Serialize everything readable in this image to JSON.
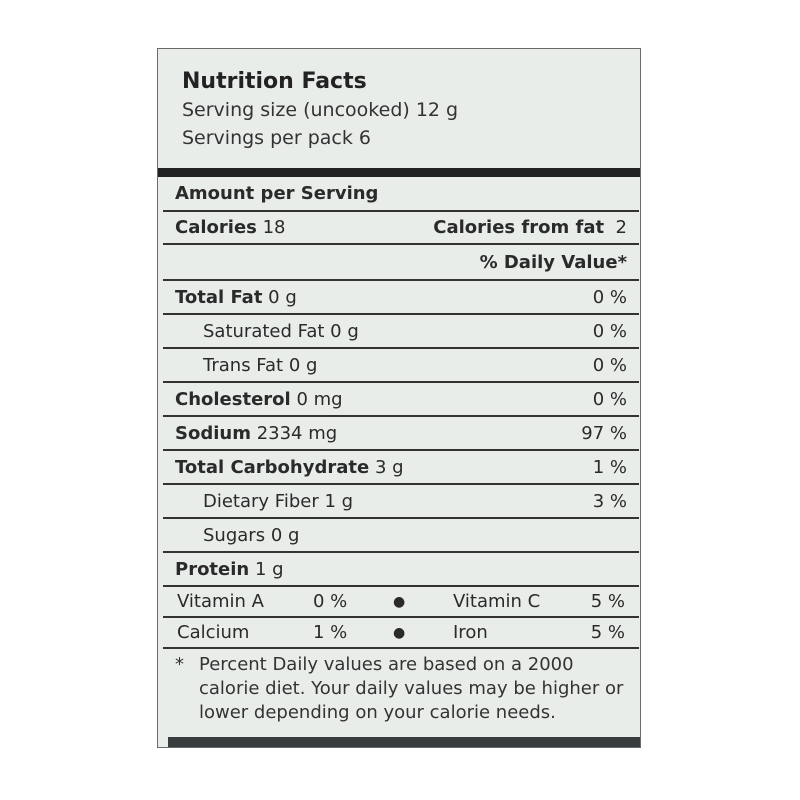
{
  "header": {
    "title": "Nutrition Facts",
    "serving_size": "Serving size (uncooked) 12 g",
    "servings_per_pack": "Servings per pack 6"
  },
  "amount_per_serving": "Amount per Serving",
  "calories": {
    "label": "Calories",
    "value": "18",
    "from_fat_label": "Calories from fat",
    "from_fat_value": "2"
  },
  "daily_value_header": "% Daily Value*",
  "nutrients": [
    {
      "label": "Total Fat",
      "amount": "0 g",
      "dv": "0 %",
      "bold": true,
      "indent": false
    },
    {
      "label": "Saturated Fat",
      "amount": "0 g",
      "dv": "0 %",
      "bold": false,
      "indent": true
    },
    {
      "label": "Trans Fat",
      "amount": "0 g",
      "dv": "0 %",
      "bold": false,
      "indent": true
    },
    {
      "label": "Cholesterol",
      "amount": "0 mg",
      "dv": "0 %",
      "bold": true,
      "indent": false
    },
    {
      "label": "Sodium",
      "amount": "2334 mg",
      "dv": "97 %",
      "bold": true,
      "indent": false
    },
    {
      "label": "Total Carbohydrate",
      "amount": "3 g",
      "dv": "1 %",
      "bold": true,
      "indent": false
    },
    {
      "label": "Dietary Fiber",
      "amount": "1 g",
      "dv": "3 %",
      "bold": false,
      "indent": true
    },
    {
      "label": "Sugars",
      "amount": "0 g",
      "dv": "",
      "bold": false,
      "indent": true
    },
    {
      "label": "Protein",
      "amount": "1 g",
      "dv": "",
      "bold": true,
      "indent": false
    }
  ],
  "vitamins": [
    {
      "left_label": "Vitamin A",
      "left_value": "0 %",
      "right_label": "Vitamin C",
      "right_value": "5 %"
    },
    {
      "left_label": "Calcium",
      "left_value": "1 %",
      "right_label": "Iron",
      "right_value": "5 %"
    }
  ],
  "footnote": {
    "star": "*",
    "text": "Percent Daily values are based on a 2000 calorie diet. Your daily values may be higher or lower depending on your calorie needs."
  },
  "colors": {
    "background": "#e9edea",
    "ink": "#222222"
  }
}
